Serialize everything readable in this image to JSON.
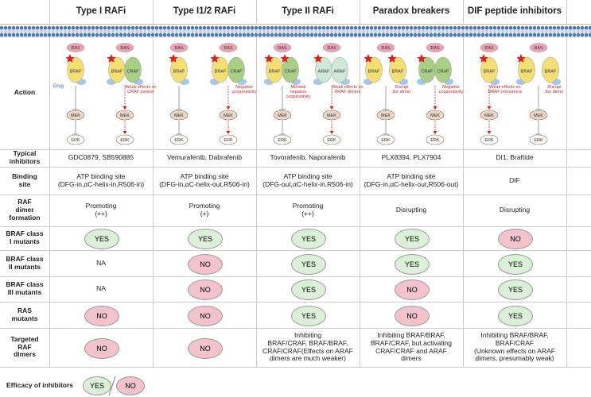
{
  "header": {
    "columns": [
      "Type I RAFi",
      "Type I1/2 RAFi",
      "Type II RAFi",
      "Paradox breakers",
      "DIF peptide inhibitors"
    ]
  },
  "action": {
    "label": "Action",
    "columns": [
      {
        "diagrams": [
          {
            "ras": "RAS",
            "proteins": [
              {
                "name": "BRAF",
                "color": "#f3df74",
                "star": true
              }
            ],
            "drug": "Drug",
            "signal": "blocked",
            "mek": "MEK",
            "erk": "ERK"
          },
          {
            "ras": "RAS",
            "proteins": [
              {
                "name": "BRAF",
                "color": "#f3df74",
                "star": true
              },
              {
                "name": "CRAF",
                "color": "#a9cf87"
              }
            ],
            "note": "Weak effects on\nCRAF partner",
            "signal": "active",
            "mek": "MEK",
            "erk": "ERK"
          }
        ]
      },
      {
        "diagrams": [
          {
            "ras": "RAS",
            "proteins": [
              {
                "name": "BRAF",
                "color": "#f3df74",
                "star": true
              }
            ],
            "signal": "blocked",
            "mek": "MEK",
            "erk": "ERK"
          },
          {
            "ras": "RAS",
            "proteins": [
              {
                "name": "BRAF",
                "color": "#f3df74",
                "star": true
              },
              {
                "name": "CRAF",
                "color": "#a9cf87"
              }
            ],
            "note": "Negative\ncooperativity",
            "signal": "active",
            "mek": "MEK",
            "erk": "ERK"
          }
        ]
      },
      {
        "diagrams": [
          {
            "ras": "RAS",
            "proteins": [
              {
                "name": "BRAF",
                "color": "#f3df74",
                "star": true
              },
              {
                "name": "CRAF",
                "color": "#a9cf87",
                "star": true
              }
            ],
            "note": "Minimal\nnegative\ncooperativity",
            "signal": "blocked",
            "mek": "MEK",
            "erk": "ERK"
          },
          {
            "ras": "RAS",
            "proteins": [
              {
                "name": "ARAF",
                "color": "#cfe8d8",
                "star": true
              },
              {
                "name": "ARAF",
                "color": "#cfe8d8"
              }
            ],
            "note": "Weak effects on\nARAF dimers",
            "signal": "active",
            "mek": "MEK",
            "erk": "ERK"
          }
        ]
      },
      {
        "diagrams": [
          {
            "ras": "RAS",
            "proteins": [
              {
                "name": "BRAF",
                "color": "#f3df74",
                "star": true
              },
              {
                "name": "BRAF",
                "color": "#f3df74",
                "star": true
              }
            ],
            "split": true,
            "note": "Disrupt\nthe dimer",
            "signal": "blocked",
            "mek": "MEK",
            "erk": "ERK"
          },
          {
            "ras": "RAS",
            "proteins": [
              {
                "name": "CRAF",
                "color": "#a9cf87",
                "star": true
              },
              {
                "name": "CRAF",
                "color": "#a9cf87"
              }
            ],
            "note": "Negative\ncooperativity",
            "signal": "active",
            "mek": "MEK",
            "erk": "ERK"
          }
        ]
      },
      {
        "diagrams": [
          {
            "ras": "RAS",
            "proteins": [
              {
                "name": "BRAF",
                "color": "#f3df74",
                "star": true
              }
            ],
            "note": "Weak effects on\nBRAF monomers",
            "signal": "active",
            "mek": "MEK",
            "erk": "ERK"
          },
          {
            "ras": "RAS",
            "proteins": [
              {
                "name": "BRAF",
                "color": "#f3df74",
                "star": true
              },
              {
                "name": "BRAF",
                "color": "#f3df74"
              }
            ],
            "split": true,
            "note": "Disrupt\nthe dimer",
            "signal": "blocked",
            "mek": "MEK",
            "erk": "ERK"
          }
        ]
      }
    ]
  },
  "table": {
    "rows": [
      {
        "label": "Typical\ninhibitors",
        "cells": [
          "GDC0879, SB590885",
          "Vemurafenib, Dabrafenib",
          "Tovorafenib, Naporafenib",
          "PLX8394, PLX7904",
          "DI1, Braftide"
        ]
      },
      {
        "label": "Binding\nsite",
        "cells": [
          "ATP binding site\n(DFG-in,αC-helix-in,R506-in)",
          "ATP binding site\n(DFG-in,αC-helix-out,R506-in)",
          "ATP binding site\n(DFG-out,αC-helix-in,R506-in)",
          "ATP binding site\n(DFG-in,αC-helix-out,R506-out)",
          "DIF"
        ]
      },
      {
        "label": "RAF\ndimer\nformation",
        "cells": [
          "Promoting\n(++)",
          "Promoting\n(+)",
          "Promoting\n(++)",
          "Disrupting",
          "Disrupting"
        ]
      },
      {
        "label": "BRAF class\nI mutants",
        "cells": [
          {
            "text": "YES",
            "color": "#dcefd8"
          },
          {
            "text": "YES",
            "color": "#dcefd8"
          },
          {
            "text": "YES",
            "color": "#dcefd8"
          },
          {
            "text": "YES",
            "color": "#dcefd8"
          },
          {
            "text": "NO",
            "color": "#f2c3cd"
          }
        ]
      },
      {
        "label": "BRAF class\nII mutants",
        "cells": [
          "NA",
          {
            "text": "NO",
            "color": "#f2c3cd"
          },
          {
            "text": "YES",
            "color": "#dcefd8"
          },
          {
            "text": "YES",
            "color": "#dcefd8"
          },
          {
            "text": "YES",
            "color": "#dcefd8"
          }
        ]
      },
      {
        "label": "BRAF class\nIII mutants",
        "cells": [
          "NA",
          {
            "text": "NO",
            "color": "#f2c3cd"
          },
          {
            "text": "YES",
            "color": "#dcefd8"
          },
          {
            "text": "NO",
            "color": "#f2c3cd"
          },
          {
            "text": "YES",
            "color": "#dcefd8"
          }
        ]
      },
      {
        "label": "RAS\nmutants",
        "cells": [
          {
            "text": "NO",
            "color": "#f2c3cd"
          },
          {
            "text": "NO",
            "color": "#f2c3cd"
          },
          {
            "text": "YES",
            "color": "#dcefd8"
          },
          {
            "text": "NO",
            "color": "#f2c3cd"
          },
          {
            "text": "YES",
            "color": "#dcefd8"
          }
        ]
      },
      {
        "label": "Targeted\nRAF\ndimers",
        "cells": [
          {
            "text": "NO",
            "color": "#f2c3cd"
          },
          {
            "text": "NO",
            "color": "#f2c3cd"
          },
          "Inhibiting\nBRAF/CRAF, BRAF/BRAF,\nCRAF/CRAF(Effects on ARAF\ndimers are much weaker)",
          "Inhibiting BRAF/BRAF,\nBRAF/CRAF, but activating\nCRAF/CRAF and ARAF\ndimers",
          "Inhibiting BRAF/BRAF,\nBRAF/CRAF\n(Unknown effects on ARAF\ndimers, presumably weak)"
        ]
      }
    ]
  },
  "legend": {
    "label": "Efficacy of inhibitors",
    "items": [
      {
        "text": "YES",
        "color": "#dcefd8"
      },
      {
        "text": "NO",
        "color": "#f2c3cd"
      }
    ]
  }
}
